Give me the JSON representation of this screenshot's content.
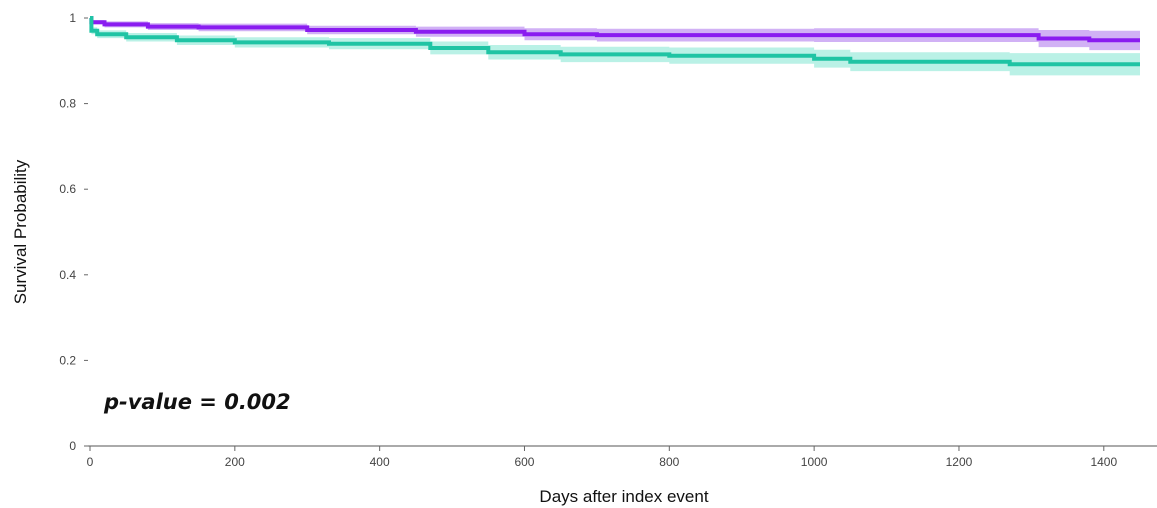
{
  "chart_data": {
    "type": "line",
    "title": "",
    "xlabel": "Days after index event",
    "ylabel": "Survival Probability",
    "xlim": [
      0,
      1450
    ],
    "ylim": [
      0,
      1
    ],
    "x_ticks": [
      0,
      200,
      400,
      600,
      800,
      1000,
      1200,
      1400
    ],
    "y_ticks": [
      0,
      0.2,
      0.4,
      0.6,
      0.8,
      1
    ],
    "y_tick_labels": [
      "0",
      "0.2",
      "0.4",
      "0.6",
      "0.8",
      "1"
    ],
    "annotation": "p-value = 0.002",
    "grid": false,
    "legend": "none",
    "step": true,
    "series": [
      {
        "color": "#8a1cf0",
        "band_color": "#c9a3f3",
        "points": [
          {
            "x": 0,
            "y": 1.0,
            "lo": 1.0,
            "hi": 1.0
          },
          {
            "x": 2,
            "y": 0.99,
            "lo": 0.985,
            "hi": 0.995
          },
          {
            "x": 20,
            "y": 0.985,
            "lo": 0.978,
            "hi": 0.992
          },
          {
            "x": 80,
            "y": 0.98,
            "lo": 0.972,
            "hi": 0.988
          },
          {
            "x": 150,
            "y": 0.978,
            "lo": 0.969,
            "hi": 0.987
          },
          {
            "x": 300,
            "y": 0.972,
            "lo": 0.962,
            "hi": 0.982
          },
          {
            "x": 450,
            "y": 0.968,
            "lo": 0.956,
            "hi": 0.98
          },
          {
            "x": 600,
            "y": 0.962,
            "lo": 0.948,
            "hi": 0.976
          },
          {
            "x": 700,
            "y": 0.96,
            "lo": 0.945,
            "hi": 0.975
          },
          {
            "x": 1000,
            "y": 0.96,
            "lo": 0.944,
            "hi": 0.976
          },
          {
            "x": 1310,
            "y": 0.952,
            "lo": 0.932,
            "hi": 0.972
          },
          {
            "x": 1380,
            "y": 0.948,
            "lo": 0.925,
            "hi": 0.97
          },
          {
            "x": 1450,
            "y": 0.948,
            "lo": 0.925,
            "hi": 0.97
          }
        ]
      },
      {
        "color": "#1fc4a4",
        "band_color": "#aeeee2",
        "points": [
          {
            "x": 0,
            "y": 1.0,
            "lo": 1.0,
            "hi": 1.0
          },
          {
            "x": 2,
            "y": 0.97,
            "lo": 0.962,
            "hi": 0.978
          },
          {
            "x": 10,
            "y": 0.962,
            "lo": 0.953,
            "hi": 0.971
          },
          {
            "x": 50,
            "y": 0.955,
            "lo": 0.945,
            "hi": 0.965
          },
          {
            "x": 120,
            "y": 0.948,
            "lo": 0.937,
            "hi": 0.959
          },
          {
            "x": 200,
            "y": 0.943,
            "lo": 0.931,
            "hi": 0.955
          },
          {
            "x": 330,
            "y": 0.94,
            "lo": 0.927,
            "hi": 0.953
          },
          {
            "x": 470,
            "y": 0.93,
            "lo": 0.915,
            "hi": 0.945
          },
          {
            "x": 550,
            "y": 0.92,
            "lo": 0.903,
            "hi": 0.937
          },
          {
            "x": 650,
            "y": 0.915,
            "lo": 0.897,
            "hi": 0.933
          },
          {
            "x": 800,
            "y": 0.912,
            "lo": 0.893,
            "hi": 0.931
          },
          {
            "x": 1000,
            "y": 0.905,
            "lo": 0.884,
            "hi": 0.926
          },
          {
            "x": 1050,
            "y": 0.898,
            "lo": 0.876,
            "hi": 0.92
          },
          {
            "x": 1270,
            "y": 0.892,
            "lo": 0.866,
            "hi": 0.918
          },
          {
            "x": 1450,
            "y": 0.892,
            "lo": 0.866,
            "hi": 0.918
          }
        ]
      }
    ]
  }
}
